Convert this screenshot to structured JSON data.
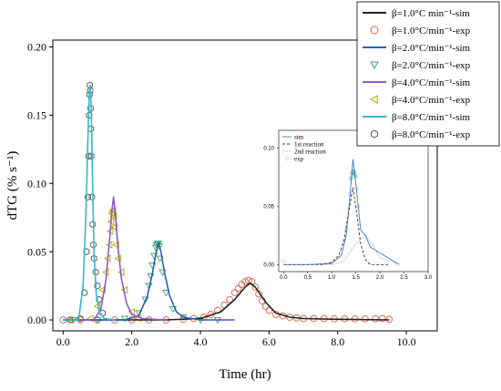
{
  "chart_data": [
    {
      "type": "line",
      "xlabel": "Time (hr)",
      "ylabel": "dTG (% s⁻¹)",
      "xlim": [
        -0.3,
        10.9
      ],
      "ylim": [
        -0.008,
        0.205
      ],
      "xticks": [
        0.0,
        2.0,
        4.0,
        6.0,
        8.0,
        10.0
      ],
      "xtick_labels": [
        "0.0",
        "2.0",
        "4.0",
        "6.0",
        "8.0",
        "10.0"
      ],
      "yticks": [
        0.0,
        0.05,
        0.1,
        0.15,
        0.2
      ],
      "ytick_labels": [
        "0.00",
        "0.05",
        "0.10",
        "0.15",
        "0.20"
      ],
      "legend_position": "top-right, boxed",
      "series": [
        {
          "name": "β=1.0°C min⁻¹-sim",
          "kind": "line",
          "color": "#222222",
          "x": [
            0.0,
            3.0,
            4.0,
            4.6,
            5.0,
            5.3,
            5.45,
            5.6,
            5.9,
            6.2,
            6.6,
            7.0,
            8.0,
            9.5
          ],
          "y": [
            0.0,
            0.0,
            0.001,
            0.006,
            0.015,
            0.024,
            0.027,
            0.024,
            0.013,
            0.005,
            0.002,
            0.001,
            0.0005,
            0.0
          ]
        },
        {
          "name": "β=1.0°C/min⁻¹-exp",
          "kind": "scatter",
          "marker": "circle",
          "color": "#d9604a",
          "x": [
            0.0,
            0.5,
            1.0,
            1.5,
            2.0,
            2.5,
            3.0,
            3.5,
            3.8,
            4.1,
            4.3,
            4.5,
            4.7,
            4.85,
            5.0,
            5.1,
            5.2,
            5.3,
            5.4,
            5.5,
            5.6,
            5.7,
            5.8,
            5.9,
            6.0,
            6.2,
            6.4,
            6.6,
            6.8,
            7.0,
            7.3,
            7.6,
            7.9,
            8.2,
            8.5,
            8.8,
            9.1,
            9.3,
            9.5
          ],
          "y": [
            0.0,
            0.0,
            0.0,
            0.0,
            0.0,
            0.0,
            0.0,
            0.0005,
            0.001,
            0.002,
            0.004,
            0.007,
            0.011,
            0.015,
            0.02,
            0.023,
            0.026,
            0.028,
            0.029,
            0.028,
            0.024,
            0.019,
            0.014,
            0.01,
            0.007,
            0.004,
            0.003,
            0.002,
            0.0015,
            0.001,
            0.001,
            0.001,
            0.0008,
            0.0008,
            0.0008,
            0.0008,
            0.0008,
            0.001,
            0.0005
          ]
        },
        {
          "name": "β=2.0°C/min⁻¹-sim",
          "kind": "line",
          "color": "#2f5fc0",
          "x": [
            0.0,
            1.8,
            2.2,
            2.45,
            2.6,
            2.7,
            2.78,
            2.85,
            2.95,
            3.1,
            3.3,
            3.5,
            4.0,
            5.0
          ],
          "y": [
            0.0,
            0.0,
            0.003,
            0.017,
            0.034,
            0.048,
            0.057,
            0.05,
            0.035,
            0.018,
            0.006,
            0.002,
            0.0,
            0.0
          ]
        },
        {
          "name": "β=2.0°C/min⁻¹-exp",
          "kind": "scatter",
          "marker": "triangle-down",
          "color": "#3aa86a",
          "x": [
            0.3,
            1.0,
            1.8,
            2.2,
            2.4,
            2.5,
            2.55,
            2.6,
            2.65,
            2.7,
            2.72,
            2.75,
            2.78,
            2.8,
            2.82,
            2.9,
            3.0,
            3.2,
            3.5,
            4.0,
            4.5
          ],
          "y": [
            0.0,
            0.0,
            0.001,
            0.005,
            0.015,
            0.025,
            0.032,
            0.04,
            0.047,
            0.053,
            0.055,
            0.056,
            0.056,
            0.054,
            0.045,
            0.035,
            0.02,
            0.008,
            0.002,
            0.0,
            0.0
          ]
        },
        {
          "name": "β=4.0°C/min⁻¹-sim",
          "kind": "line",
          "color": "#8a5cc9",
          "x": [
            0.0,
            0.9,
            1.1,
            1.25,
            1.35,
            1.42,
            1.47,
            1.52,
            1.6,
            1.7,
            1.85,
            2.0,
            2.3,
            3.0
          ],
          "y": [
            0.0,
            0.0,
            0.008,
            0.03,
            0.058,
            0.08,
            0.09,
            0.078,
            0.052,
            0.03,
            0.012,
            0.004,
            0.001,
            0.0
          ]
        },
        {
          "name": "β=4.0°C/min⁻¹-exp",
          "kind": "scatter",
          "marker": "triangle-left",
          "color": "#c2a000",
          "x": [
            0.2,
            0.8,
            1.0,
            1.15,
            1.25,
            1.3,
            1.35,
            1.38,
            1.4,
            1.42,
            1.44,
            1.46,
            1.48,
            1.5,
            1.55,
            1.6,
            1.7,
            1.8,
            2.0,
            2.2
          ],
          "y": [
            0.0,
            0.001,
            0.01,
            0.022,
            0.035,
            0.045,
            0.055,
            0.065,
            0.072,
            0.078,
            0.08,
            0.08,
            0.076,
            0.068,
            0.055,
            0.045,
            0.035,
            0.022,
            0.006,
            0.001
          ]
        },
        {
          "name": "β=8.0°C/min⁻¹-sim",
          "kind": "line",
          "color": "#38b8c8",
          "x": [
            0.0,
            0.45,
            0.58,
            0.66,
            0.72,
            0.76,
            0.79,
            0.82,
            0.86,
            0.9,
            0.96,
            1.05,
            1.2,
            1.5
          ],
          "y": [
            0.0,
            0.0,
            0.025,
            0.075,
            0.13,
            0.165,
            0.172,
            0.155,
            0.1,
            0.05,
            0.02,
            0.006,
            0.001,
            0.0
          ]
        },
        {
          "name": "β=8.0°C/min⁻¹-exp",
          "kind": "scatter",
          "marker": "hexagon",
          "color": "#555555",
          "x": [
            0.2,
            0.5,
            0.62,
            0.68,
            0.72,
            0.74,
            0.76,
            0.77,
            0.78,
            0.79,
            0.8,
            0.81,
            0.82,
            0.84,
            0.86,
            0.88,
            0.9,
            0.95,
            1.0,
            1.05,
            1.15
          ],
          "y": [
            0.0,
            0.001,
            0.02,
            0.05,
            0.09,
            0.12,
            0.15,
            0.165,
            0.172,
            0.168,
            0.155,
            0.14,
            0.12,
            0.09,
            0.07,
            0.055,
            0.045,
            0.035,
            0.025,
            0.015,
            0.005
          ]
        }
      ]
    },
    {
      "type": "line",
      "xlim": [
        -0.1,
        3.0
      ],
      "ylim": [
        -0.006,
        0.115
      ],
      "xticks": [
        0.0,
        0.5,
        1.0,
        1.5,
        2.0,
        2.5,
        3.0
      ],
      "xtick_labels": [
        "0.0",
        "0.5",
        "1.0",
        "1.5",
        "2.0",
        "2.5",
        "3.0"
      ],
      "yticks": [
        0.0,
        0.05,
        0.1
      ],
      "ytick_labels": [
        "0.00",
        "0.05",
        "0.10"
      ],
      "legend_position": "top-left",
      "series": [
        {
          "name": "sim",
          "kind": "line",
          "style": "solid",
          "color": "#3c78c8",
          "x": [
            0.0,
            0.5,
            1.0,
            1.2,
            1.3,
            1.38,
            1.44,
            1.5,
            1.6,
            1.7,
            1.8,
            2.0,
            2.2,
            2.4
          ],
          "y": [
            0.0,
            0.0,
            0.001,
            0.008,
            0.025,
            0.06,
            0.09,
            0.07,
            0.03,
            0.025,
            0.015,
            0.01,
            0.005,
            0.0
          ]
        },
        {
          "name": "1st reaction",
          "kind": "line",
          "style": "dashed",
          "color": "#333333",
          "x": [
            0.0,
            0.8,
            1.0,
            1.15,
            1.25,
            1.35,
            1.44,
            1.5,
            1.6,
            1.7,
            1.8,
            2.2
          ],
          "y": [
            0.0,
            0.0,
            0.002,
            0.008,
            0.02,
            0.045,
            0.066,
            0.05,
            0.018,
            0.004,
            0.0,
            0.0
          ]
        },
        {
          "name": "2nd reaction",
          "kind": "line",
          "style": "dotted",
          "color": "#999999",
          "x": [
            0.0,
            1.0,
            1.2,
            1.3,
            1.4,
            1.5,
            1.6,
            1.7,
            1.8,
            2.0,
            2.4
          ],
          "y": [
            0.0,
            0.0,
            0.002,
            0.006,
            0.012,
            0.018,
            0.022,
            0.025,
            0.02,
            0.006,
            0.0
          ]
        },
        {
          "name": "exp",
          "kind": "scatter",
          "marker": "circle",
          "color": "#a9c6e8",
          "x": [
            0.0,
            1.3,
            1.38,
            1.4,
            1.42,
            1.44,
            1.46,
            1.48,
            1.5,
            1.52,
            1.55
          ],
          "y": [
            0.003,
            0.03,
            0.06,
            0.072,
            0.078,
            0.08,
            0.08,
            0.078,
            0.075,
            0.065,
            0.05
          ]
        },
        {
          "name": "",
          "kind": "scatter",
          "marker": "circle",
          "color": "#3aa86a",
          "x": [
            1.4,
            1.42,
            1.44,
            1.46,
            1.48
          ],
          "y": [
            0.074,
            0.078,
            0.08,
            0.079,
            0.076
          ]
        }
      ]
    }
  ]
}
